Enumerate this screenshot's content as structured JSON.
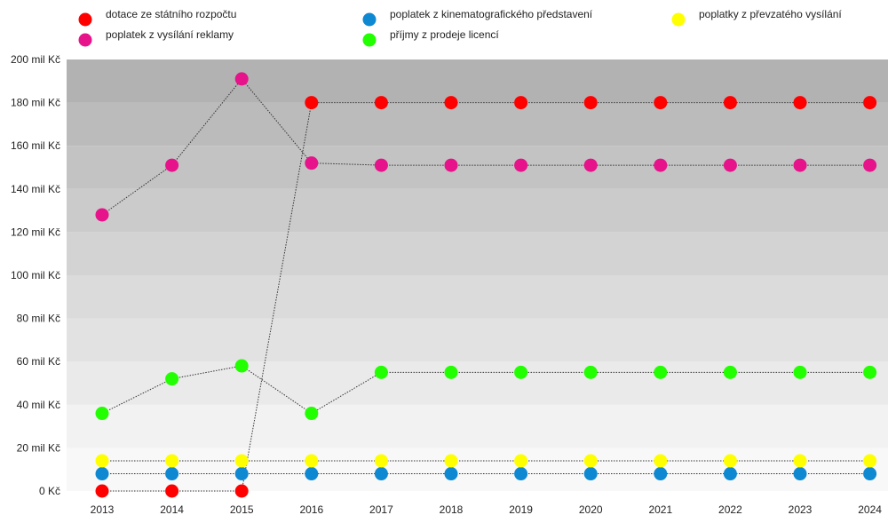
{
  "chart_data": {
    "type": "scatter",
    "title": "",
    "xlabel": "",
    "ylabel": "",
    "x": [
      "2013",
      "2014",
      "2015",
      "2016",
      "2017",
      "2018",
      "2019",
      "2020",
      "2021",
      "2022",
      "2023",
      "2024"
    ],
    "ylim": [
      0,
      200
    ],
    "y_ticks": [
      "0 Kč",
      "20 mil Kč",
      "40 mil Kč",
      "60 mil Kč",
      "80 mil Kč",
      "100 mil Kč",
      "120 mil Kč",
      "140 mil Kč",
      "160 mil Kč",
      "180 mil Kč",
      "200 mil Kč"
    ],
    "grid": "horizontal bands",
    "legend_position": "top",
    "series": [
      {
        "name": "dotace ze státního rozpočtu",
        "color": "#ff0000",
        "values": [
          0,
          0,
          0,
          180,
          180,
          180,
          180,
          180,
          180,
          180,
          180,
          180
        ]
      },
      {
        "name": "poplatek z kinematografického představení",
        "color": "#0f88d2",
        "values": [
          8,
          8,
          8,
          8,
          8,
          8,
          8,
          8,
          8,
          8,
          8,
          8
        ]
      },
      {
        "name": "poplatky z převzatého vysílání",
        "color": "#ffff00",
        "values": [
          14,
          14,
          14,
          14,
          14,
          14,
          14,
          14,
          14,
          14,
          14,
          14
        ]
      },
      {
        "name": "poplatek z vysílání reklamy",
        "color": "#e6138a",
        "values": [
          128,
          151,
          191,
          152,
          151,
          151,
          151,
          151,
          151,
          151,
          151,
          151
        ]
      },
      {
        "name": "příjmy z prodeje licencí",
        "color": "#22ff00",
        "values": [
          36,
          52,
          58,
          36,
          55,
          55,
          55,
          55,
          55,
          55,
          55,
          55
        ]
      }
    ]
  }
}
